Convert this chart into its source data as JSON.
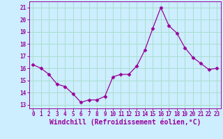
{
  "x": [
    0,
    1,
    2,
    3,
    4,
    5,
    6,
    7,
    8,
    9,
    10,
    11,
    12,
    13,
    14,
    15,
    16,
    17,
    18,
    19,
    20,
    21,
    22,
    23
  ],
  "y": [
    16.3,
    16.0,
    15.5,
    14.7,
    14.5,
    13.9,
    13.2,
    13.4,
    13.4,
    13.7,
    15.3,
    15.5,
    15.5,
    16.2,
    17.5,
    19.3,
    21.0,
    19.5,
    18.9,
    17.7,
    16.9,
    16.4,
    15.9,
    16.0
  ],
  "line_color": "#990099",
  "marker": "D",
  "marker_size": 2.5,
  "bg_color": "#cceeff",
  "grid_color": "#aaddcc",
  "xlabel": "Windchill (Refroidissement éolien,°C)",
  "ylim": [
    12.7,
    21.5
  ],
  "xlim": [
    -0.5,
    23.5
  ],
  "yticks": [
    13,
    14,
    15,
    16,
    17,
    18,
    19,
    20,
    21
  ],
  "xticks": [
    0,
    1,
    2,
    3,
    4,
    5,
    6,
    7,
    8,
    9,
    10,
    11,
    12,
    13,
    14,
    15,
    16,
    17,
    18,
    19,
    20,
    21,
    22,
    23
  ],
  "tick_color": "#990099",
  "label_color": "#990099",
  "tick_fontsize": 5.5,
  "xlabel_fontsize": 7.0
}
